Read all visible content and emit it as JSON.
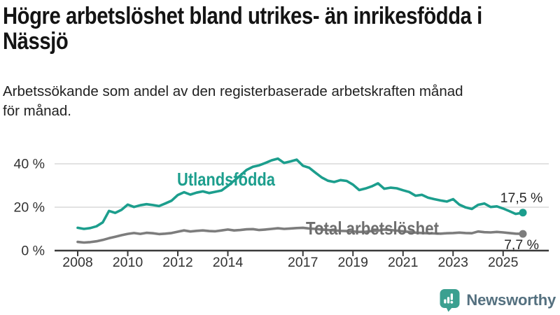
{
  "title": {
    "lines": [
      "Högre arbetslöshet bland utrikes- än inrikesfödda i",
      "Nässjö"
    ]
  },
  "subtitle": {
    "lines": [
      "Arbetssökande som andel av den registerbaserade arbetskraften månad",
      "för månad."
    ]
  },
  "branding": {
    "logo_text": "Newsworthy",
    "logo_icon": "newsworthy-bar-chart-bubble-icon",
    "logo_icon_color": "#3ba090",
    "logo_text_color": "#54707f"
  },
  "colors": {
    "background": "#ffffff",
    "title_text": "#141414",
    "subtitle_text": "#212121",
    "grid_line": "#d9d9d9",
    "axis_line": "#3a3a3a",
    "tick_label": "#333333",
    "annotation_text": "#262626",
    "series_foreign_born": "#1c9e8d",
    "series_total": "#7d7d7d",
    "series_total_label": "#6e6e6e"
  },
  "chart_data": {
    "type": "line",
    "title": "Högre arbetslöshet bland utrikes- än inrikesfödda i Nässjö",
    "subtitle": "Arbetssökande som andel av den registerbaserade arbetskraften månad för månad.",
    "xlabel": "",
    "ylabel": "",
    "grid": "horizontal",
    "legend_position": "inline-labels",
    "xlim": [
      2007.1,
      2026.8
    ],
    "ylim": [
      0,
      48
    ],
    "x_ticks": {
      "values": [
        2008,
        2010,
        2012,
        2014,
        2017,
        2019,
        2021,
        2023,
        2025
      ],
      "labels": [
        "2008",
        "2010",
        "2012",
        "2014",
        "2017",
        "2019",
        "2021",
        "2023",
        "2025"
      ]
    },
    "y_ticks": {
      "values": [
        0,
        20,
        40
      ],
      "labels": [
        "0 %",
        "20 %",
        "40 %"
      ]
    },
    "x_unit": "year (monthly data)",
    "y_unit": "% av arbetskraften",
    "x": [
      2008.0,
      2008.25,
      2008.5,
      2008.75,
      2009.0,
      2009.25,
      2009.5,
      2009.75,
      2010.0,
      2010.25,
      2010.5,
      2010.75,
      2011.0,
      2011.25,
      2011.5,
      2011.75,
      2012.0,
      2012.25,
      2012.5,
      2012.75,
      2013.0,
      2013.25,
      2013.5,
      2013.75,
      2014.0,
      2014.25,
      2014.5,
      2014.75,
      2015.0,
      2015.25,
      2015.5,
      2015.75,
      2016.0,
      2016.25,
      2016.5,
      2016.75,
      2017.0,
      2017.25,
      2017.5,
      2017.75,
      2018.0,
      2018.25,
      2018.5,
      2018.75,
      2019.0,
      2019.25,
      2019.5,
      2019.75,
      2020.0,
      2020.25,
      2020.5,
      2020.75,
      2021.0,
      2021.25,
      2021.5,
      2021.75,
      2022.0,
      2022.25,
      2022.5,
      2022.75,
      2023.0,
      2023.25,
      2023.5,
      2023.75,
      2024.0,
      2024.25,
      2024.5,
      2024.75,
      2025.0,
      2025.25,
      2025.5,
      2025.79
    ],
    "series": [
      {
        "name": "Utlandsfödda",
        "color": "#1c9e8d",
        "end_label": "17,5 %",
        "end_value": 17.5,
        "values": [
          10.5,
          10.0,
          10.4,
          11.2,
          13.0,
          18.3,
          17.4,
          18.8,
          21.2,
          20.1,
          20.9,
          21.4,
          21.0,
          20.5,
          21.7,
          23.0,
          25.6,
          26.9,
          25.8,
          26.7,
          27.3,
          26.5,
          27.1,
          27.7,
          29.8,
          32.2,
          34.6,
          37.2,
          38.6,
          39.3,
          40.4,
          41.6,
          42.4,
          40.4,
          41.1,
          41.9,
          39.1,
          38.2,
          35.9,
          33.7,
          32.2,
          31.6,
          32.5,
          32.1,
          30.4,
          27.9,
          28.6,
          29.6,
          31.0,
          28.5,
          29.0,
          28.7,
          27.8,
          27.0,
          25.3,
          25.7,
          24.4,
          23.7,
          23.1,
          22.6,
          23.7,
          21.2,
          19.9,
          19.2,
          21.1,
          21.7,
          20.1,
          20.4,
          19.4,
          18.2,
          16.9,
          17.5
        ]
      },
      {
        "name": "Total arbetslöshet",
        "color": "#7d7d7d",
        "end_label": "7,7 %",
        "end_value": 7.7,
        "values": [
          4.0,
          3.7,
          3.9,
          4.3,
          4.9,
          5.7,
          6.4,
          7.1,
          7.7,
          8.1,
          7.7,
          8.2,
          8.0,
          7.6,
          7.8,
          8.1,
          8.7,
          9.3,
          8.8,
          9.1,
          9.3,
          9.0,
          8.9,
          9.3,
          9.7,
          9.3,
          9.5,
          9.8,
          9.9,
          9.5,
          9.7,
          10.0,
          10.3,
          10.0,
          10.2,
          10.4,
          10.5,
          10.2,
          10.0,
          9.7,
          9.5,
          9.3,
          9.1,
          9.0,
          8.8,
          8.6,
          8.7,
          9.0,
          9.2,
          9.7,
          9.5,
          9.2,
          8.9,
          8.6,
          8.3,
          8.1,
          8.0,
          7.9,
          7.8,
          8.0,
          8.1,
          8.3,
          8.1,
          8.0,
          8.8,
          8.5,
          8.4,
          8.6,
          8.4,
          8.1,
          7.8,
          7.7
        ]
      }
    ]
  }
}
